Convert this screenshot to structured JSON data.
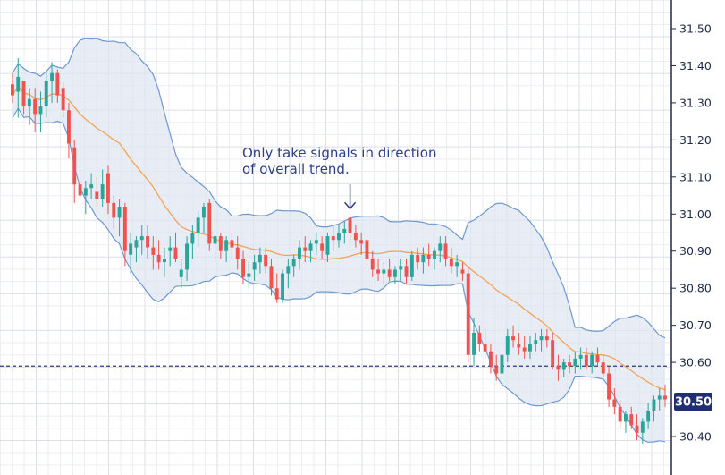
{
  "chart_data": {
    "type": "candlestick",
    "ylim": [
      30.34,
      31.54
    ],
    "y_ticks": [
      "31.50",
      "31.40",
      "31.30",
      "31.20",
      "31.10",
      "31.00",
      "30.90",
      "30.80",
      "30.70",
      "30.60",
      "30.40"
    ],
    "grid": true,
    "current_price": "30.50",
    "reference_line": 30.59,
    "annotation": {
      "line1": "Only take signals in direction",
      "line2": "of overall trend.",
      "target_index": 60
    },
    "colors": {
      "bull": "#2aa59a",
      "bear": "#ef5350",
      "band_fill": "#dfe6f1",
      "band_line": "#6e99cf",
      "ma_line": "#f5a353",
      "badge": "#1f2f72",
      "annotation": "#2e3f8a",
      "reference_line": "#2b3a7a"
    },
    "candles": [
      [
        31.35,
        31.38,
        31.3,
        31.32
      ],
      [
        31.33,
        31.42,
        31.26,
        31.37
      ],
      [
        31.36,
        31.36,
        31.27,
        31.29
      ],
      [
        31.29,
        31.34,
        31.24,
        31.31
      ],
      [
        31.31,
        31.34,
        31.22,
        31.27
      ],
      [
        31.27,
        31.33,
        31.22,
        31.29
      ],
      [
        31.29,
        31.38,
        31.26,
        31.36
      ],
      [
        31.36,
        31.41,
        31.3,
        31.38
      ],
      [
        31.38,
        31.39,
        31.3,
        31.32
      ],
      [
        31.34,
        31.36,
        31.26,
        31.28
      ],
      [
        31.28,
        31.3,
        31.15,
        31.19
      ],
      [
        31.18,
        31.2,
        31.03,
        31.08
      ],
      [
        31.08,
        31.12,
        31.02,
        31.05
      ],
      [
        31.05,
        31.09,
        31.0,
        31.07
      ],
      [
        31.07,
        31.11,
        31.04,
        31.08
      ],
      [
        31.06,
        31.1,
        31.02,
        31.04
      ],
      [
        31.04,
        31.12,
        31.02,
        31.08
      ],
      [
        31.11,
        31.13,
        31.0,
        31.03
      ],
      [
        31.03,
        31.05,
        30.96,
        30.99
      ],
      [
        30.99,
        31.04,
        30.94,
        31.02
      ],
      [
        31.02,
        31.03,
        30.86,
        30.9
      ],
      [
        30.89,
        30.95,
        30.84,
        30.92
      ],
      [
        30.91,
        30.94,
        30.87,
        30.93
      ],
      [
        30.93,
        30.97,
        30.89,
        30.94
      ],
      [
        30.94,
        30.97,
        30.88,
        30.91
      ],
      [
        30.91,
        30.94,
        30.85,
        30.89
      ],
      [
        30.89,
        30.93,
        30.85,
        30.87
      ],
      [
        30.87,
        30.91,
        30.83,
        30.88
      ],
      [
        30.9,
        30.94,
        30.86,
        30.91
      ],
      [
        30.91,
        30.95,
        30.87,
        30.88
      ],
      [
        30.83,
        30.88,
        30.8,
        30.85
      ],
      [
        30.85,
        30.94,
        30.82,
        30.92
      ],
      [
        30.92,
        30.97,
        30.88,
        30.95
      ],
      [
        30.95,
        31.01,
        30.91,
        30.99
      ],
      [
        30.99,
        31.03,
        30.95,
        31.02
      ],
      [
        31.03,
        31.04,
        30.9,
        30.92
      ],
      [
        30.92,
        30.95,
        30.87,
        30.94
      ],
      [
        30.94,
        30.95,
        30.88,
        30.9
      ],
      [
        30.9,
        30.94,
        30.87,
        30.93
      ],
      [
        30.93,
        30.95,
        30.88,
        30.91
      ],
      [
        30.91,
        30.94,
        30.85,
        30.88
      ],
      [
        30.88,
        30.9,
        30.81,
        30.83
      ],
      [
        30.83,
        30.87,
        30.8,
        30.84
      ],
      [
        30.85,
        30.89,
        30.82,
        30.87
      ],
      [
        30.87,
        30.91,
        30.84,
        30.89
      ],
      [
        30.89,
        30.91,
        30.84,
        30.86
      ],
      [
        30.86,
        30.88,
        30.78,
        30.8
      ],
      [
        30.8,
        30.84,
        30.76,
        30.77
      ],
      [
        30.77,
        30.85,
        30.76,
        30.84
      ],
      [
        30.84,
        30.88,
        30.8,
        30.86
      ],
      [
        30.86,
        30.89,
        30.83,
        30.88
      ],
      [
        30.88,
        30.93,
        30.85,
        30.91
      ],
      [
        30.91,
        30.94,
        30.87,
        30.9
      ],
      [
        30.9,
        30.93,
        30.87,
        30.92
      ],
      [
        30.92,
        30.95,
        30.89,
        30.93
      ],
      [
        30.92,
        30.94,
        30.88,
        30.9
      ],
      [
        30.89,
        30.95,
        30.87,
        30.94
      ],
      [
        30.94,
        30.97,
        30.9,
        30.93
      ],
      [
        30.93,
        30.97,
        30.91,
        30.95
      ],
      [
        30.95,
        30.98,
        30.92,
        30.96
      ],
      [
        30.99,
        31.0,
        30.92,
        30.95
      ],
      [
        30.95,
        30.97,
        30.91,
        30.93
      ],
      [
        30.93,
        30.95,
        30.89,
        30.92
      ],
      [
        30.93,
        30.94,
        30.86,
        30.88
      ],
      [
        30.88,
        30.9,
        30.83,
        30.85
      ],
      [
        30.85,
        30.88,
        30.82,
        30.84
      ],
      [
        30.84,
        30.87,
        30.81,
        30.85
      ],
      [
        30.85,
        30.88,
        30.82,
        30.83
      ],
      [
        30.83,
        30.86,
        30.81,
        30.85
      ],
      [
        30.85,
        30.88,
        30.82,
        30.86
      ],
      [
        30.86,
        30.88,
        30.81,
        30.83
      ],
      [
        30.83,
        30.9,
        30.82,
        30.89
      ],
      [
        30.89,
        30.91,
        30.85,
        30.87
      ],
      [
        30.87,
        30.91,
        30.84,
        30.89
      ],
      [
        30.89,
        30.92,
        30.86,
        30.88
      ],
      [
        30.88,
        30.91,
        30.85,
        30.9
      ],
      [
        30.9,
        30.94,
        30.87,
        30.92
      ],
      [
        30.92,
        30.94,
        30.86,
        30.88
      ],
      [
        30.88,
        30.91,
        30.84,
        30.86
      ],
      [
        30.86,
        30.89,
        30.83,
        30.87
      ],
      [
        30.85,
        30.87,
        30.82,
        30.84
      ],
      [
        30.84,
        30.86,
        30.6,
        30.62
      ],
      [
        30.62,
        30.72,
        30.59,
        30.68
      ],
      [
        30.68,
        30.7,
        30.63,
        30.65
      ],
      [
        30.65,
        30.69,
        30.61,
        30.63
      ],
      [
        30.63,
        30.65,
        30.57,
        30.59
      ],
      [
        30.59,
        30.62,
        30.55,
        30.57
      ],
      [
        30.57,
        30.64,
        30.55,
        30.62
      ],
      [
        30.62,
        30.69,
        30.6,
        30.67
      ],
      [
        30.67,
        30.7,
        30.64,
        30.66
      ],
      [
        30.65,
        30.68,
        30.62,
        30.64
      ],
      [
        30.64,
        30.67,
        30.61,
        30.63
      ],
      [
        30.63,
        30.67,
        30.61,
        30.65
      ],
      [
        30.65,
        30.68,
        30.63,
        30.66
      ],
      [
        30.66,
        30.69,
        30.63,
        30.67
      ],
      [
        30.67,
        30.69,
        30.64,
        30.66
      ],
      [
        30.66,
        30.68,
        30.58,
        30.59
      ],
      [
        30.59,
        30.62,
        30.55,
        30.58
      ],
      [
        30.58,
        30.61,
        30.56,
        30.6
      ],
      [
        30.6,
        30.62,
        30.57,
        30.59
      ],
      [
        30.59,
        30.63,
        30.57,
        30.61
      ],
      [
        30.61,
        30.64,
        30.58,
        30.62
      ],
      [
        30.62,
        30.64,
        30.58,
        30.59
      ],
      [
        30.59,
        30.63,
        30.57,
        30.62
      ],
      [
        30.62,
        30.64,
        30.59,
        30.6
      ],
      [
        30.6,
        30.62,
        30.56,
        30.57
      ],
      [
        30.57,
        30.59,
        30.48,
        30.5
      ],
      [
        30.5,
        30.53,
        30.46,
        30.48
      ],
      [
        30.48,
        30.5,
        30.42,
        30.44
      ],
      [
        30.44,
        30.47,
        30.41,
        30.46
      ],
      [
        30.46,
        30.48,
        30.42,
        30.43
      ],
      [
        30.43,
        30.46,
        30.39,
        30.41
      ],
      [
        30.41,
        30.45,
        30.38,
        30.44
      ],
      [
        30.44,
        30.49,
        30.42,
        30.47
      ],
      [
        30.47,
        30.51,
        30.44,
        30.5
      ],
      [
        30.5,
        30.53,
        30.47,
        30.51
      ],
      [
        30.51,
        30.54,
        30.48,
        30.5
      ]
    ]
  }
}
